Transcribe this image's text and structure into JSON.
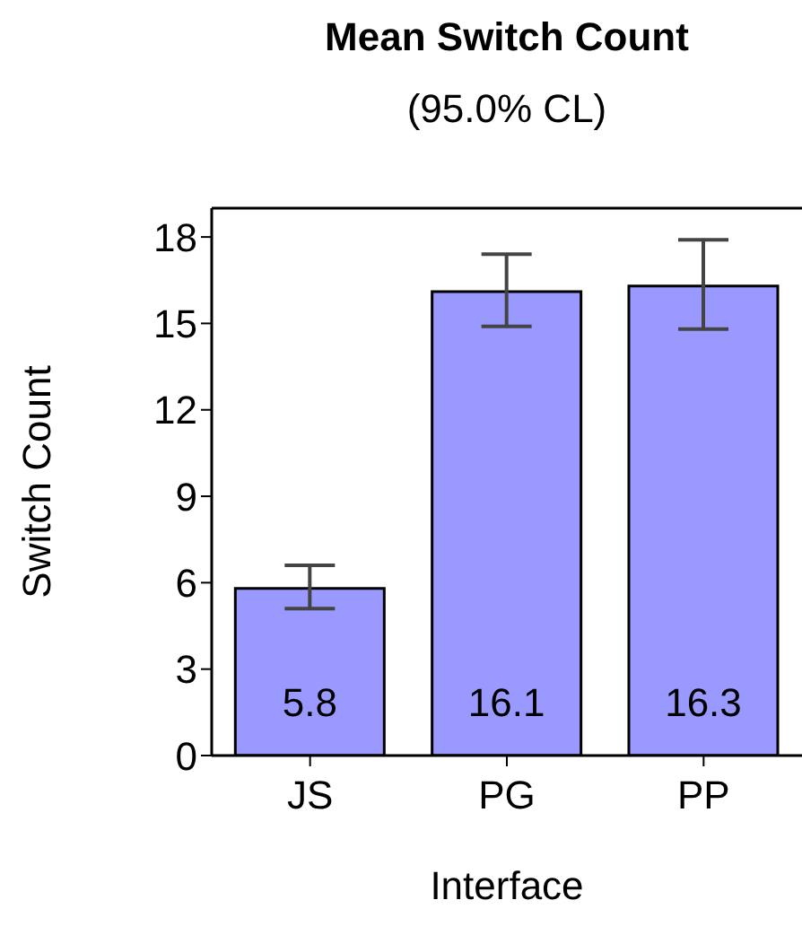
{
  "chart_data": {
    "type": "bar",
    "title": "Mean Switch Count",
    "subtitle": "(95.0% CL)",
    "xlabel": "Interface",
    "ylabel": "Switch Count",
    "categories": [
      "JS",
      "PG",
      "PP"
    ],
    "values": [
      5.8,
      16.1,
      16.3
    ],
    "errors": [
      [
        5.1,
        6.6
      ],
      [
        14.9,
        17.4
      ],
      [
        14.8,
        17.9
      ]
    ],
    "color": "#9999ff",
    "data_labels": true,
    "grid": false,
    "ylim": [
      0,
      19
    ],
    "yticks": [
      0,
      3,
      6,
      9,
      12,
      15,
      18
    ]
  }
}
